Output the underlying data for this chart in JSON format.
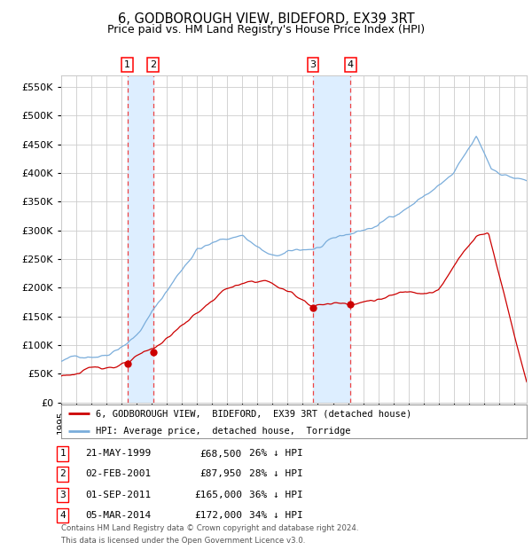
{
  "title": "6, GODBOROUGH VIEW, BIDEFORD, EX39 3RT",
  "subtitle": "Price paid vs. HM Land Registry's House Price Index (HPI)",
  "ylim": [
    0,
    570000
  ],
  "yticks": [
    0,
    50000,
    100000,
    150000,
    200000,
    250000,
    300000,
    350000,
    400000,
    450000,
    500000,
    550000
  ],
  "xlim_start": 1995.0,
  "xlim_end": 2025.83,
  "transactions": [
    {
      "num": 1,
      "date_str": "21-MAY-1999",
      "date_x": 1999.38,
      "price": 68500,
      "pct": "26%"
    },
    {
      "num": 2,
      "date_str": "02-FEB-2001",
      "date_x": 2001.09,
      "price": 87950,
      "pct": "28%"
    },
    {
      "num": 3,
      "date_str": "01-SEP-2011",
      "date_x": 2011.67,
      "price": 165000,
      "pct": "36%"
    },
    {
      "num": 4,
      "date_str": "05-MAR-2014",
      "date_x": 2014.17,
      "price": 172000,
      "pct": "34%"
    }
  ],
  "legend_label_red": "6, GODBOROUGH VIEW,  BIDEFORD,  EX39 3RT (detached house)",
  "legend_label_blue": "HPI: Average price,  detached house,  Torridge",
  "footnote_line1": "Contains HM Land Registry data © Crown copyright and database right 2024.",
  "footnote_line2": "This data is licensed under the Open Government Licence v3.0.",
  "red_color": "#cc0000",
  "blue_color": "#7aaddb",
  "grid_color": "#cccccc",
  "vspan_color": "#ddeeff",
  "dashed_color": "#ee4444",
  "background_color": "#ffffff"
}
